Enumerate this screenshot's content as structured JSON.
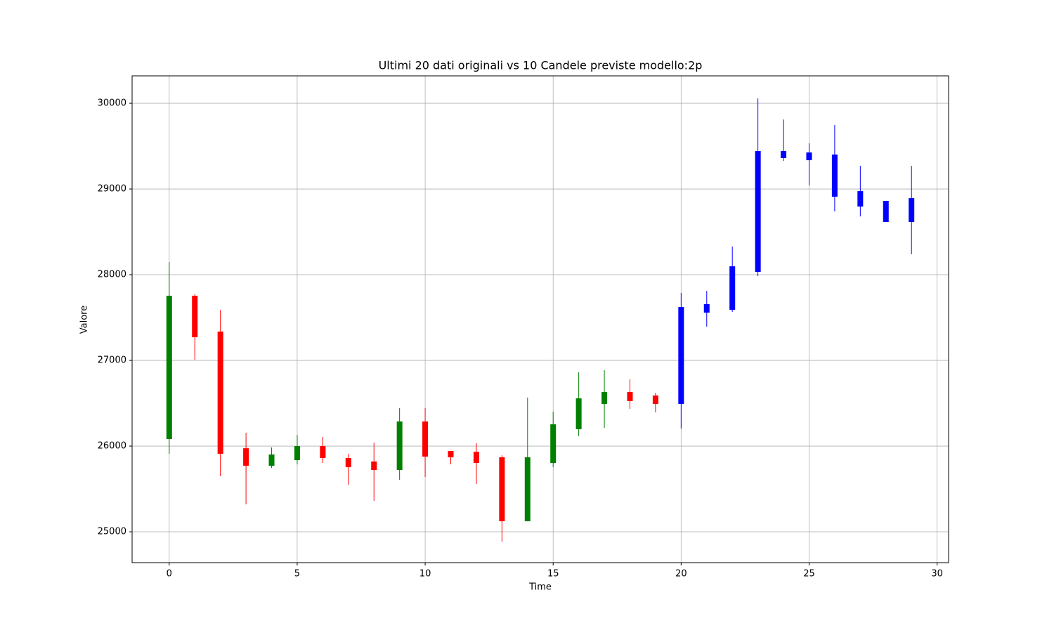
{
  "chart_data": {
    "type": "candlestick",
    "title": "Ultimi 20 dati originali vs 10 Candele previste modello:2p",
    "x_label": "Time",
    "y_label": "Valore",
    "x": [
      0,
      1,
      2,
      3,
      4,
      5,
      6,
      7,
      8,
      9,
      10,
      11,
      12,
      13,
      14,
      15,
      16,
      17,
      18,
      19,
      20,
      21,
      22,
      23,
      24,
      25,
      26,
      27,
      28,
      29
    ],
    "open": [
      26082,
      27754,
      27336,
      25975,
      25770,
      25836,
      26000,
      25861,
      25820,
      25721,
      26287,
      25943,
      25934,
      25869,
      25123,
      25803,
      26197,
      26492,
      26631,
      26590,
      26492,
      27557,
      27590,
      28033,
      29361,
      29426,
      29402,
      28975,
      28861,
      28615
    ],
    "high": [
      28148,
      27770,
      27590,
      26156,
      25984,
      26131,
      26107,
      25910,
      26041,
      26443,
      26443,
      25943,
      26033,
      25893,
      26566,
      26402,
      26861,
      26885,
      26779,
      26623,
      27787,
      27811,
      28328,
      30057,
      29811,
      29533,
      29746,
      29270,
      28861,
      29270
    ],
    "low": [
      25910,
      27008,
      25648,
      25320,
      25746,
      25787,
      25803,
      25549,
      25361,
      25607,
      25639,
      25787,
      25557,
      24885,
      25123,
      25754,
      26115,
      26213,
      26434,
      26393,
      26205,
      27393,
      27566,
      27984,
      29328,
      29041,
      28738,
      28680,
      28615,
      28238
    ],
    "close": [
      27754,
      27270,
      25910,
      25770,
      25902,
      26000,
      25861,
      25754,
      25721,
      26287,
      25877,
      25869,
      25803,
      25123,
      25869,
      26254,
      26557,
      26631,
      26525,
      26492,
      27623,
      27656,
      28098,
      29443,
      29443,
      29336,
      28910,
      28795,
      28615,
      28893
    ],
    "colors": [
      "green",
      "red",
      "red",
      "red",
      "green",
      "green",
      "red",
      "red",
      "red",
      "green",
      "red",
      "red",
      "red",
      "red",
      "green",
      "green",
      "green",
      "green",
      "red",
      "red",
      "blue",
      "blue",
      "blue",
      "blue",
      "blue",
      "blue",
      "blue",
      "blue",
      "blue",
      "blue"
    ],
    "xlim": [
      -1.45,
      30.45
    ],
    "ylim": [
      24640,
      30320
    ],
    "xticks": [
      0,
      5,
      10,
      15,
      20,
      25,
      30
    ],
    "yticks": [
      25000,
      26000,
      27000,
      28000,
      29000,
      30000
    ],
    "grid": true
  }
}
